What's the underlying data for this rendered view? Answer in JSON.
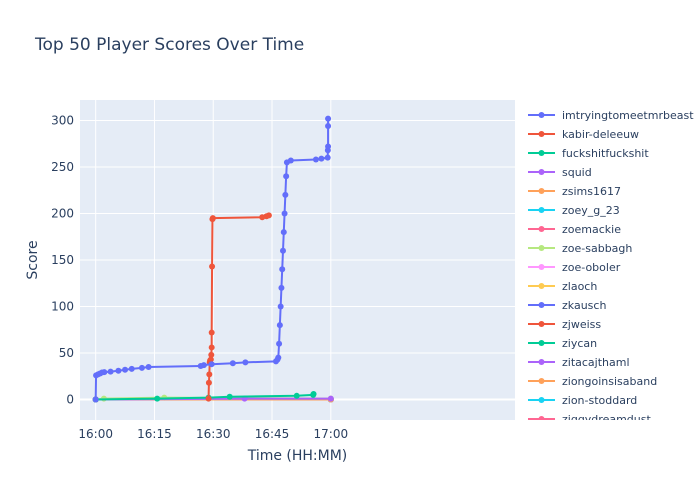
{
  "chart_data": {
    "type": "line",
    "title": "Top 50 Player Scores Over Time",
    "xlabel": "Time (HH:MM)",
    "ylabel": "Score",
    "x_unit": "minutes after 16:00",
    "xlim": [
      -4,
      107
    ],
    "ylim": [
      -22,
      322
    ],
    "x_ticks": [
      {
        "value": 0,
        "label": "16:00"
      },
      {
        "value": 15,
        "label": "16:15"
      },
      {
        "value": 30,
        "label": "16:30"
      },
      {
        "value": 45,
        "label": "16:45"
      },
      {
        "value": 60,
        "label": "17:00"
      }
    ],
    "y_ticks": [
      0,
      50,
      100,
      150,
      200,
      250,
      300
    ],
    "grid": true,
    "legend_position": "right",
    "series": [
      {
        "name": "imtryingtomeetmrbeast",
        "color": "#636efa",
        "points": [
          [
            0,
            0
          ],
          [
            0.1,
            26
          ],
          [
            0.6,
            27
          ],
          [
            1.1,
            28
          ],
          [
            1.6,
            29
          ],
          [
            2.2,
            29.5
          ],
          [
            3.8,
            30
          ],
          [
            5.8,
            31
          ],
          [
            7.5,
            32
          ],
          [
            9.2,
            33
          ],
          [
            11.8,
            34
          ],
          [
            13.5,
            35
          ],
          [
            26.8,
            36
          ],
          [
            27.6,
            37
          ],
          [
            29.6,
            38
          ],
          [
            35,
            39
          ],
          [
            38.2,
            40
          ],
          [
            46,
            41
          ],
          [
            46.4,
            43
          ],
          [
            46.6,
            45
          ],
          [
            46.8,
            60
          ],
          [
            47.0,
            80
          ],
          [
            47.2,
            100
          ],
          [
            47.4,
            120
          ],
          [
            47.6,
            140
          ],
          [
            47.8,
            160
          ],
          [
            48.0,
            180
          ],
          [
            48.2,
            200
          ],
          [
            48.4,
            220
          ],
          [
            48.6,
            240
          ],
          [
            48.8,
            255
          ],
          [
            49.8,
            257
          ],
          [
            56.2,
            258
          ],
          [
            57.6,
            259
          ],
          [
            59.2,
            260
          ],
          [
            59.25,
            268
          ],
          [
            59.3,
            272
          ],
          [
            59.3,
            294
          ],
          [
            59.3,
            302
          ]
        ]
      },
      {
        "name": "kabir-deleeuw",
        "color": "#ef553b",
        "points": [
          [
            28.8,
            1
          ],
          [
            28.9,
            18
          ],
          [
            29,
            27
          ],
          [
            29.1,
            40
          ],
          [
            29.2,
            42
          ],
          [
            29.4,
            43
          ],
          [
            29.5,
            48
          ],
          [
            29.6,
            56
          ],
          [
            29.6,
            72
          ],
          [
            29.7,
            143
          ],
          [
            29.8,
            194
          ],
          [
            29.9,
            195
          ],
          [
            42.5,
            196
          ],
          [
            43.6,
            197
          ],
          [
            44.2,
            198
          ]
        ]
      },
      {
        "name": "fuckshitfuckshit",
        "color": "#00cc96",
        "points": [
          [
            0,
            0
          ],
          [
            15.7,
            1
          ],
          [
            28.8,
            2
          ],
          [
            34.2,
            3
          ],
          [
            51.3,
            4
          ],
          [
            55.5,
            5
          ],
          [
            55.6,
            6
          ]
        ]
      },
      {
        "name": "squid",
        "color": "#ab63fa",
        "points": [
          [
            0,
            0
          ],
          [
            38,
            1
          ],
          [
            60,
            1
          ]
        ]
      },
      {
        "name": "zsims1617",
        "color": "#ffa15a",
        "points": [
          [
            0,
            0
          ],
          [
            60,
            0
          ]
        ]
      },
      {
        "name": "zoey_g_23",
        "color": "#19d3f3",
        "points": [
          [
            0,
            0
          ],
          [
            60,
            0
          ]
        ]
      },
      {
        "name": "zoemackie",
        "color": "#ff6692",
        "points": [
          [
            0,
            0
          ],
          [
            60,
            0
          ]
        ]
      },
      {
        "name": "zoe-sabbagh",
        "color": "#b6e880",
        "points": [
          [
            0,
            0
          ],
          [
            2.1,
            1
          ],
          [
            17.5,
            2
          ],
          [
            60,
            1
          ]
        ]
      },
      {
        "name": "zoe-oboler",
        "color": "#ff97ff",
        "points": [
          [
            0,
            0
          ],
          [
            60,
            0
          ]
        ]
      },
      {
        "name": "zlaoch",
        "color": "#fecb52",
        "points": [
          [
            0,
            0
          ],
          [
            60,
            0
          ]
        ]
      },
      {
        "name": "zkausch",
        "color": "#636efa",
        "points": [
          [
            0,
            0
          ],
          [
            60,
            0
          ]
        ]
      },
      {
        "name": "zjweiss",
        "color": "#ef553b",
        "points": [
          [
            0,
            0
          ],
          [
            60,
            0
          ]
        ]
      },
      {
        "name": "ziycan",
        "color": "#00cc96",
        "points": [
          [
            0,
            0
          ],
          [
            60,
            0
          ]
        ]
      },
      {
        "name": "zitacajthaml",
        "color": "#ab63fa",
        "points": [
          [
            0,
            0
          ],
          [
            60,
            0
          ]
        ]
      },
      {
        "name": "ziongoinsisaband",
        "color": "#ffa15a",
        "points": [
          [
            0,
            0
          ],
          [
            60,
            0
          ]
        ]
      },
      {
        "name": "zion-stoddard",
        "color": "#19d3f3",
        "points": [
          [
            0,
            0
          ],
          [
            60,
            0
          ]
        ]
      },
      {
        "name": "ziggydreamdust",
        "color": "#ff6692",
        "points": [
          [
            0,
            0
          ],
          [
            60,
            0
          ]
        ]
      }
    ]
  }
}
